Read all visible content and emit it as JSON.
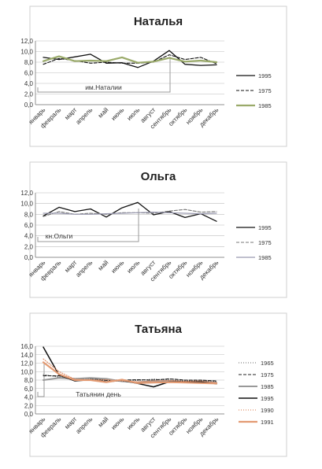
{
  "chart_data": [
    {
      "type": "line",
      "title": "Наталья",
      "categories": [
        "январь",
        "февраль",
        "март",
        "апрель",
        "май",
        "июнь",
        "июль",
        "август",
        "сентябрь",
        "октябрь",
        "ноябрь",
        "декабрь"
      ],
      "ylim": [
        0,
        12
      ],
      "yticks": [
        "0,0",
        "2,0",
        "4,0",
        "6,0",
        "8,0",
        "10,0",
        "12,0"
      ],
      "grid": true,
      "legend": "right",
      "annotation": {
        "text": "им.Наталии",
        "index": 8
      },
      "series": [
        {
          "name": "1995",
          "color": "#111111",
          "dash": "",
          "width": 1.3,
          "values": [
            8.9,
            8.5,
            9.0,
            9.5,
            7.8,
            7.9,
            7.0,
            8.2,
            10.2,
            7.6,
            7.4,
            7.5
          ]
        },
        {
          "name": "1975",
          "color": "#111111",
          "dash": "4,2",
          "width": 1.1,
          "values": [
            7.6,
            8.7,
            8.3,
            7.8,
            8.0,
            7.8,
            7.8,
            8.0,
            9.4,
            8.5,
            8.9,
            7.7
          ]
        },
        {
          "name": "1985",
          "color": "#9aaa6a",
          "dash": "",
          "width": 2.2,
          "values": [
            8.2,
            9.1,
            8.2,
            8.3,
            8.2,
            8.9,
            7.9,
            8.1,
            8.8,
            8.1,
            8.3,
            8.0
          ]
        }
      ]
    },
    {
      "type": "line",
      "title": "Ольга",
      "categories": [
        "январь",
        "февраль",
        "март",
        "апрель",
        "май",
        "июнь",
        "июль",
        "август",
        "сентябрь",
        "октябрь",
        "ноябрь",
        "декабрь"
      ],
      "ylim": [
        0,
        12
      ],
      "yticks": [
        "0,0",
        "2,0",
        "4,0",
        "6,0",
        "8,0",
        "10,0",
        "12,0"
      ],
      "grid": true,
      "legend": "right",
      "annotation": {
        "text": "кн.Ольги",
        "index": 6
      },
      "series": [
        {
          "name": "1995",
          "color": "#111111",
          "dash": "",
          "width": 1.3,
          "values": [
            7.7,
            9.3,
            8.5,
            9.0,
            7.5,
            9.2,
            10.2,
            7.9,
            8.5,
            7.4,
            8.1,
            6.7
          ]
        },
        {
          "name": "1975",
          "color": "#777777",
          "dash": "4,2",
          "width": 1.1,
          "values": [
            7.6,
            8.5,
            8.0,
            8.2,
            8.0,
            8.3,
            8.3,
            8.2,
            8.6,
            8.9,
            8.4,
            8.5
          ]
        },
        {
          "name": "1985",
          "color": "#9a9ab0",
          "dash": "",
          "width": 1.2,
          "values": [
            8.2,
            8.2,
            8.0,
            8.0,
            8.1,
            8.2,
            8.3,
            8.4,
            8.3,
            8.2,
            8.1,
            8.2
          ]
        }
      ]
    },
    {
      "type": "line",
      "title": "Татьяна",
      "categories": [
        "январь",
        "февраль",
        "март",
        "апрель",
        "май",
        "июнь",
        "июль",
        "август",
        "сентябрь",
        "октябрь",
        "ноябрь",
        "декабрь"
      ],
      "ylim": [
        0,
        16
      ],
      "yticks": [
        "0,0",
        "2,0",
        "4,0",
        "6,0",
        "8,0",
        "10,0",
        "12,0",
        "14,0",
        "16,0"
      ],
      "grid": true,
      "legend": "right",
      "annotation": {
        "text": "Татьянин день",
        "index": 0
      },
      "series": [
        {
          "name": "1965",
          "color": "#666666",
          "dash": "1,2",
          "width": 1.1,
          "values": [
            9.3,
            8.7,
            8.4,
            8.3,
            8.1,
            8.0,
            7.9,
            8.2,
            8.0,
            7.8,
            7.9,
            7.6
          ]
        },
        {
          "name": "1975",
          "color": "#222222",
          "dash": "4,2",
          "width": 1.1,
          "values": [
            9.0,
            9.0,
            8.2,
            8.4,
            7.9,
            8.0,
            8.1,
            8.0,
            8.3,
            8.0,
            8.0,
            7.8
          ]
        },
        {
          "name": "1985",
          "color": "#999999",
          "dash": "",
          "width": 2.0,
          "values": [
            8.0,
            8.5,
            8.3,
            8.5,
            8.3,
            7.7,
            7.5,
            7.8,
            7.7,
            7.5,
            7.6,
            7.4
          ]
        },
        {
          "name": "1995",
          "color": "#111111",
          "dash": "",
          "width": 1.5,
          "values": [
            15.8,
            9.2,
            7.8,
            8.1,
            7.6,
            7.9,
            7.2,
            6.4,
            7.6,
            7.6,
            7.6,
            7.1
          ]
        },
        {
          "name": "1990",
          "color": "#e0906a",
          "dash": "1,2",
          "width": 1.2,
          "values": [
            13.0,
            10.0,
            8.2,
            8.0,
            8.1,
            7.8,
            7.6,
            7.8,
            7.9,
            7.7,
            7.8,
            7.4
          ]
        },
        {
          "name": "1991",
          "color": "#e39a72",
          "dash": "",
          "width": 2.2,
          "values": [
            12.2,
            9.4,
            8.0,
            8.0,
            7.5,
            8.1,
            7.3,
            7.4,
            7.5,
            7.4,
            7.3,
            7.2
          ]
        }
      ]
    }
  ]
}
